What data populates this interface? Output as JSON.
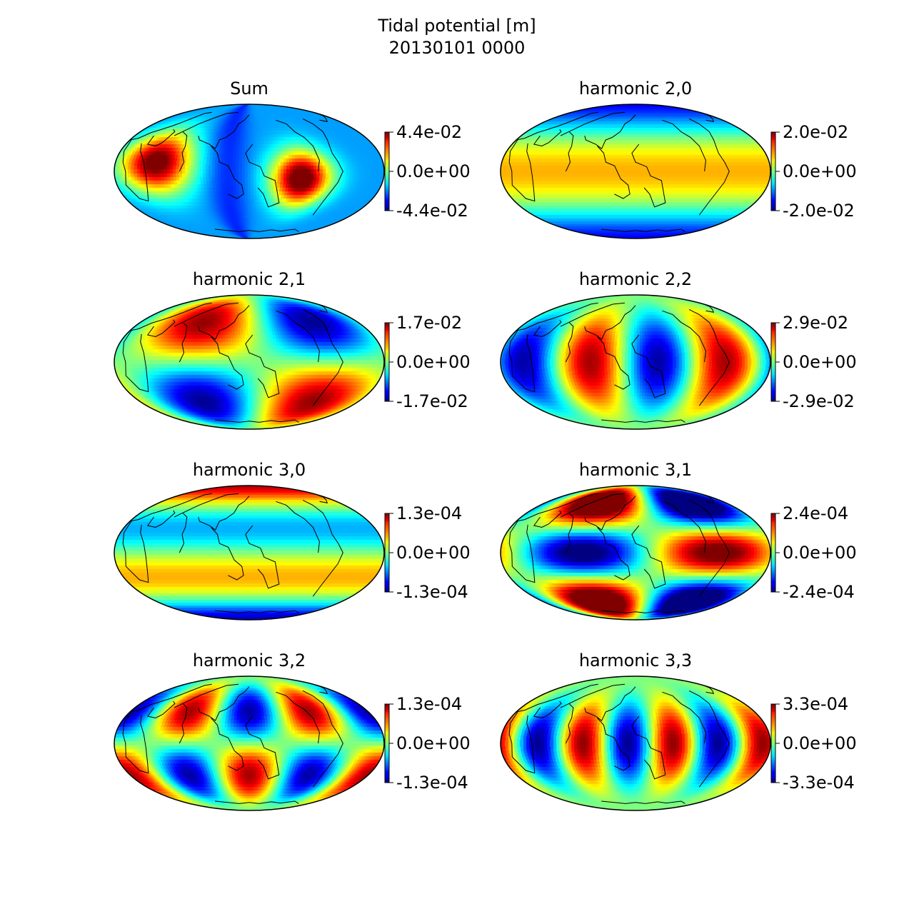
{
  "figure": {
    "title_line1": "Tidal potential [m]",
    "title_line2": "20130101 0000"
  },
  "chart_data": [
    {
      "type": "heatmap",
      "title": "Sum",
      "projection": "mollweide",
      "colormap": "jet",
      "colorbar_ticks": [
        "4.4e-02",
        "0.0e+00",
        "-4.4e-02"
      ],
      "vmin": -0.044,
      "vmax": 0.044
    },
    {
      "type": "heatmap",
      "title": "harmonic 2,0",
      "projection": "mollweide",
      "colormap": "jet",
      "colorbar_ticks": [
        "2.0e-02",
        "0.0e+00",
        "-2.0e-02"
      ],
      "vmin": -0.02,
      "vmax": 0.02
    },
    {
      "type": "heatmap",
      "title": "harmonic 2,1",
      "projection": "mollweide",
      "colormap": "jet",
      "colorbar_ticks": [
        "1.7e-02",
        "0.0e+00",
        "-1.7e-02"
      ],
      "vmin": -0.017,
      "vmax": 0.017
    },
    {
      "type": "heatmap",
      "title": "harmonic 2,2",
      "projection": "mollweide",
      "colormap": "jet",
      "colorbar_ticks": [
        "2.9e-02",
        "0.0e+00",
        "-2.9e-02"
      ],
      "vmin": -0.029,
      "vmax": 0.029
    },
    {
      "type": "heatmap",
      "title": "harmonic 3,0",
      "projection": "mollweide",
      "colormap": "jet",
      "colorbar_ticks": [
        "1.3e-04",
        "0.0e+00",
        "-1.3e-04"
      ],
      "vmin": -0.00013,
      "vmax": 0.00013
    },
    {
      "type": "heatmap",
      "title": "harmonic 3,1",
      "projection": "mollweide",
      "colormap": "jet",
      "colorbar_ticks": [
        "2.4e-04",
        "0.0e+00",
        "-2.4e-04"
      ],
      "vmin": -0.00024,
      "vmax": 0.00024
    },
    {
      "type": "heatmap",
      "title": "harmonic 3,2",
      "projection": "mollweide",
      "colormap": "jet",
      "colorbar_ticks": [
        "1.3e-04",
        "0.0e+00",
        "-1.3e-04"
      ],
      "vmin": -0.00013,
      "vmax": 0.00013
    },
    {
      "type": "heatmap",
      "title": "harmonic 3,3",
      "projection": "mollweide",
      "colormap": "jet",
      "colorbar_ticks": [
        "3.3e-04",
        "0.0e+00",
        "-3.3e-04"
      ],
      "vmin": -0.00033,
      "vmax": 0.00033
    }
  ]
}
